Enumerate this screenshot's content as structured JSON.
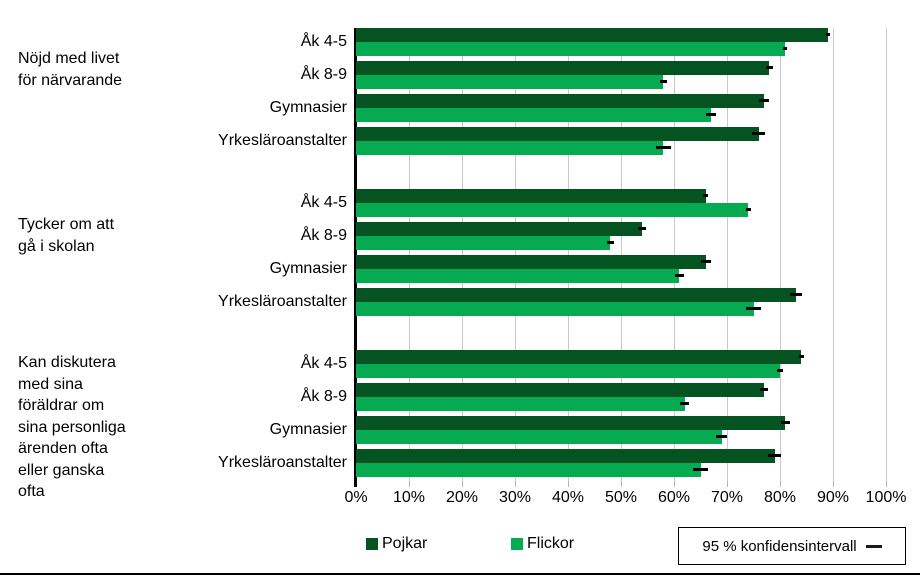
{
  "chart_data": {
    "type": "bar",
    "orientation": "horizontal",
    "title": "",
    "xlabel": "",
    "ylabel": "",
    "x_axis": {
      "min": 0,
      "max": 100,
      "step": 10,
      "unit": "%",
      "tick_labels": [
        "0%",
        "10%",
        "20%",
        "30%",
        "40%",
        "50%",
        "60%",
        "70%",
        "80%",
        "90%",
        "100%"
      ]
    },
    "grid": true,
    "series": [
      {
        "name": "Pojkar",
        "color": "#045320"
      },
      {
        "name": "Flickor",
        "color": "#05AA51"
      }
    ],
    "groups": [
      {
        "label": "Nöjd med livet\nför närvarande",
        "rows": [
          {
            "category": "Åk 4-5",
            "pojkar": 89,
            "pojkar_ci": 0.4,
            "flickor": 81,
            "flickor_ci": 0.4
          },
          {
            "category": "Åk 8-9",
            "pojkar": 78,
            "pojkar_ci": 0.7,
            "flickor": 58,
            "flickor_ci": 0.7
          },
          {
            "category": "Gymnasier",
            "pojkar": 77,
            "pojkar_ci": 0.9,
            "flickor": 67,
            "flickor_ci": 0.9
          },
          {
            "category": "Yrkesläroanstalter",
            "pojkar": 76,
            "pojkar_ci": 1.2,
            "flickor": 58,
            "flickor_ci": 1.4
          }
        ]
      },
      {
        "label": "Tycker om att\ngå i skolan",
        "rows": [
          {
            "category": "Åk 4-5",
            "pojkar": 66,
            "pojkar_ci": 0.5,
            "flickor": 74,
            "flickor_ci": 0.5
          },
          {
            "category": "Åk 8-9",
            "pojkar": 54,
            "pojkar_ci": 0.7,
            "flickor": 48,
            "flickor_ci": 0.7
          },
          {
            "category": "Gymnasier",
            "pojkar": 66,
            "pojkar_ci": 0.9,
            "flickor": 61,
            "flickor_ci": 0.9
          },
          {
            "category": "Yrkesläroanstalter",
            "pojkar": 83,
            "pojkar_ci": 1.2,
            "flickor": 75,
            "flickor_ci": 1.4
          }
        ]
      },
      {
        "label": "Kan diskutera\nmed sina\nföräldrar om\nsina personliga\närenden ofta\neller ganska\nofta",
        "rows": [
          {
            "category": "Åk 4-5",
            "pojkar": 84,
            "pojkar_ci": 0.5,
            "flickor": 80,
            "flickor_ci": 0.5
          },
          {
            "category": "Åk 8-9",
            "pojkar": 77,
            "pojkar_ci": 0.7,
            "flickor": 62,
            "flickor_ci": 0.8
          },
          {
            "category": "Gymnasier",
            "pojkar": 81,
            "pojkar_ci": 0.9,
            "flickor": 69,
            "flickor_ci": 1.0
          },
          {
            "category": "Yrkesläroanstalter",
            "pojkar": 79,
            "pojkar_ci": 1.2,
            "flickor": 65,
            "flickor_ci": 1.4
          }
        ]
      }
    ],
    "legend": {
      "position": "bottom",
      "pojkar_label": "Pojkar",
      "flickor_label": "Flickor",
      "ci_label": "95 % konfidensintervall"
    }
  }
}
